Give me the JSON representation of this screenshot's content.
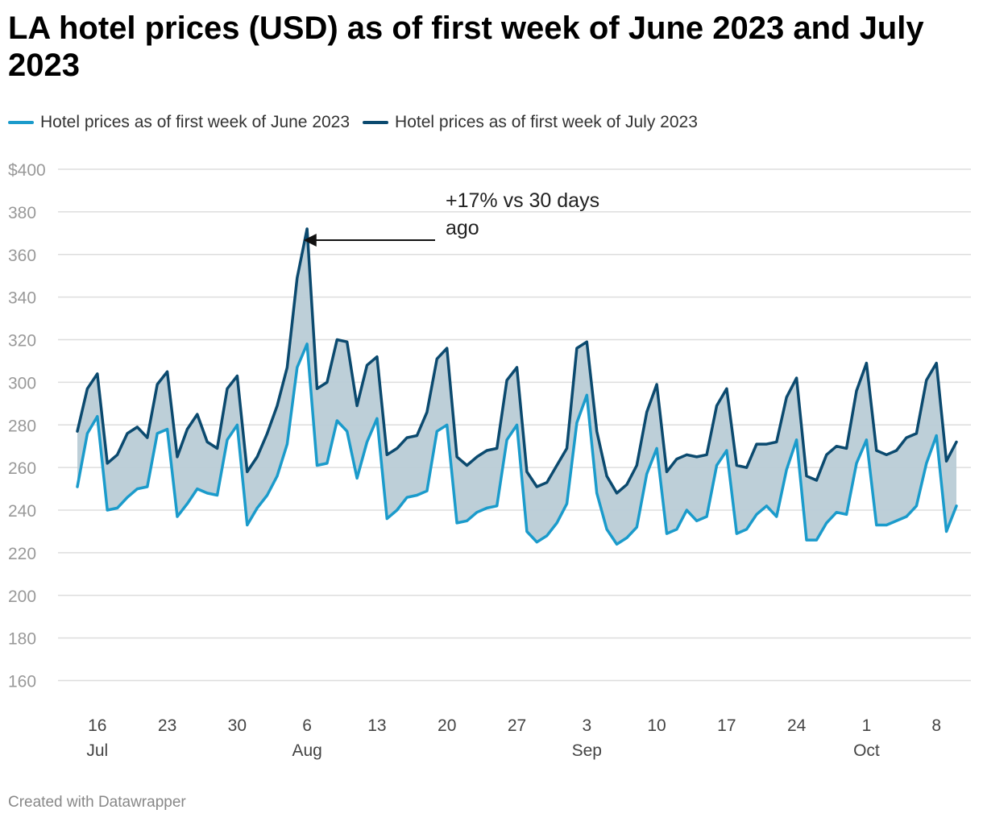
{
  "title": "LA hotel prices (USD) as of first week of June 2023 and July 2023",
  "footer": "Created with Datawrapper",
  "colors": {
    "june": "#1b9bcb",
    "july": "#0b4a6f",
    "area": "#b9ccd6",
    "grid": "#dddddd",
    "axis_text": "#999999",
    "tick_text": "#444444"
  },
  "chart_data": {
    "type": "line",
    "title": "LA hotel prices (USD) as of first week of June 2023 and July 2023",
    "xlabel": "",
    "ylabel": "",
    "ylim": [
      150,
      400
    ],
    "y_ticks": [
      {
        "value": 400,
        "label": "$400"
      },
      {
        "value": 380,
        "label": "380"
      },
      {
        "value": 360,
        "label": "360"
      },
      {
        "value": 340,
        "label": "340"
      },
      {
        "value": 320,
        "label": "320"
      },
      {
        "value": 300,
        "label": "300"
      },
      {
        "value": 280,
        "label": "280"
      },
      {
        "value": 260,
        "label": "260"
      },
      {
        "value": 240,
        "label": "240"
      },
      {
        "value": 220,
        "label": "220"
      },
      {
        "value": 200,
        "label": "200"
      },
      {
        "value": 180,
        "label": "180"
      },
      {
        "value": 160,
        "label": "160"
      }
    ],
    "x_range": [
      "2023-07-14",
      "2023-10-09"
    ],
    "x_ticks": [
      {
        "date": "2023-07-16",
        "day": "16",
        "month": "Jul"
      },
      {
        "date": "2023-07-23",
        "day": "23",
        "month": ""
      },
      {
        "date": "2023-07-30",
        "day": "30",
        "month": ""
      },
      {
        "date": "2023-08-06",
        "day": "6",
        "month": "Aug"
      },
      {
        "date": "2023-08-13",
        "day": "13",
        "month": ""
      },
      {
        "date": "2023-08-20",
        "day": "20",
        "month": ""
      },
      {
        "date": "2023-08-27",
        "day": "27",
        "month": ""
      },
      {
        "date": "2023-09-03",
        "day": "3",
        "month": "Sep"
      },
      {
        "date": "2023-09-10",
        "day": "10",
        "month": ""
      },
      {
        "date": "2023-09-17",
        "day": "17",
        "month": ""
      },
      {
        "date": "2023-09-24",
        "day": "24",
        "month": ""
      },
      {
        "date": "2023-10-01",
        "day": "1",
        "month": "Oct"
      },
      {
        "date": "2023-10-08",
        "day": "8",
        "month": ""
      }
    ],
    "series": [
      {
        "name": "Hotel prices as of first week of June 2023",
        "color": "#1b9bcb",
        "values": [
          251,
          276,
          284,
          240,
          241,
          246,
          250,
          251,
          276,
          278,
          237,
          243,
          250,
          248,
          247,
          273,
          280,
          233,
          241,
          247,
          256,
          271,
          307,
          318,
          261,
          262,
          282,
          277,
          255,
          272,
          283,
          236,
          240,
          246,
          247,
          249,
          277,
          280,
          234,
          235,
          239,
          241,
          242,
          273,
          280,
          230,
          225,
          228,
          234,
          243,
          281,
          294,
          248,
          231,
          224,
          227,
          232,
          257,
          269,
          229,
          231,
          240,
          235,
          237,
          261,
          268,
          229,
          231,
          238,
          242,
          237,
          259,
          273,
          226,
          226,
          234,
          239,
          238,
          262,
          273,
          233,
          233,
          235,
          237,
          242,
          262,
          275,
          230,
          242
        ]
      },
      {
        "name": "Hotel prices as of first week of July 2023",
        "color": "#0b4a6f",
        "values": [
          277,
          297,
          304,
          262,
          266,
          276,
          279,
          274,
          299,
          305,
          265,
          278,
          285,
          272,
          269,
          297,
          303,
          258,
          265,
          276,
          289,
          307,
          349,
          372,
          297,
          300,
          320,
          319,
          289,
          308,
          312,
          266,
          269,
          274,
          275,
          286,
          311,
          316,
          265,
          261,
          265,
          268,
          269,
          301,
          307,
          258,
          251,
          253,
          261,
          269,
          316,
          319,
          277,
          256,
          248,
          252,
          261,
          286,
          299,
          258,
          264,
          266,
          265,
          266,
          289,
          297,
          261,
          260,
          271,
          271,
          272,
          293,
          302,
          256,
          254,
          266,
          270,
          269,
          296,
          309,
          268,
          266,
          268,
          274,
          276,
          301,
          309,
          263,
          272
        ]
      }
    ],
    "annotation": {
      "text_line1": "+17% vs 30 days",
      "text_line2": "ago",
      "target_date": "2023-08-05",
      "target_value": 372
    }
  },
  "legend": [
    {
      "label": "Hotel prices as of first week of June 2023",
      "color": "#1b9bcb"
    },
    {
      "label": "Hotel prices as of first week of July 2023",
      "color": "#0b4a6f"
    }
  ]
}
